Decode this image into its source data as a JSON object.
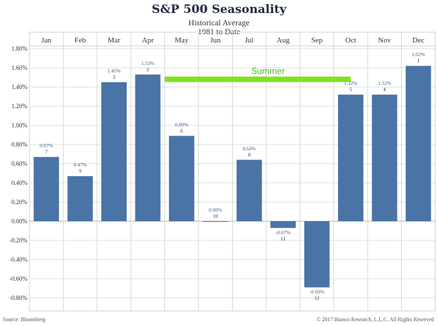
{
  "header": {
    "title": "S&P 500 Seasonality",
    "subtitle": "Historical Average",
    "period": "1981 to Date"
  },
  "footer": {
    "source": "Source: Bloomberg",
    "copyright": "© 2017 Bianco Research, L.L.C. All Rights Reserved"
  },
  "chart_data": {
    "type": "bar",
    "title": "S&P 500 Seasonality",
    "categories": [
      "Jan",
      "Feb",
      "Mar",
      "Apr",
      "May",
      "Jun",
      "Jul",
      "Aug",
      "Sep",
      "Oct",
      "Nov",
      "Dec"
    ],
    "values": [
      0.67,
      0.47,
      1.45,
      1.53,
      0.89,
      0.0,
      0.64,
      -0.07,
      -0.69,
      1.32,
      1.32,
      1.62
    ],
    "value_labels": [
      "0.67%",
      "0.47%",
      "1.45%",
      "1.53%",
      "0.89%",
      "0.00%",
      "0.64%",
      "-0.07%",
      "-0.69%",
      "1.32%",
      "1.32%",
      "1.62%"
    ],
    "ranks": [
      "7",
      "9",
      "3",
      "2",
      "6",
      "10",
      "8",
      "11",
      "12",
      "5",
      "4",
      "1"
    ],
    "yticks": [
      1.8,
      1.6,
      1.4,
      1.2,
      1.0,
      0.8,
      0.6,
      0.4,
      0.2,
      0.0,
      -0.2,
      -0.4,
      -0.6,
      -0.8
    ],
    "ytick_labels": [
      "1.80%",
      "1.60%",
      "1.40%",
      "1.20%",
      "1.00%",
      "0.80%",
      "0.60%",
      "0.40%",
      "0.20%",
      "0.00%",
      "-0.20%",
      "-0.40%",
      "-0.60%",
      "-0.80%"
    ],
    "ylim": [
      -0.9,
      1.85
    ],
    "xlabel": "",
    "ylabel": "",
    "legend": "none",
    "grid": true,
    "bar_color": "#4a73a6",
    "annotation": {
      "text": "Summer",
      "from": "May",
      "to": "Oct",
      "value": 1.48,
      "color": "#7fe31f"
    }
  }
}
